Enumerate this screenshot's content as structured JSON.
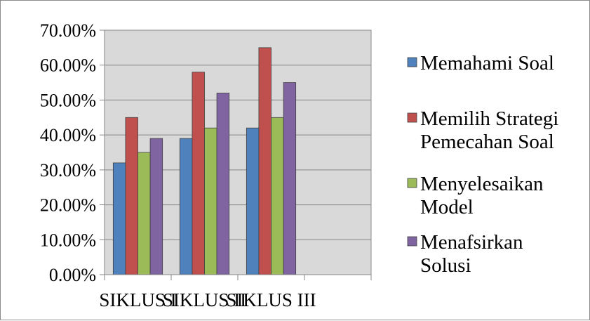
{
  "chart_data": {
    "type": "bar",
    "categories": [
      "SIKLUS I",
      "SIKLUS II",
      "SIKLUS III",
      ""
    ],
    "series": [
      {
        "name": "Memahami Soal",
        "values": [
          0.32,
          0.39,
          0.42,
          null
        ],
        "color": "#4f81bd",
        "label_lines": [
          "Memahami Soal"
        ]
      },
      {
        "name": "Memilih Strategi Pemecahan Soal",
        "values": [
          0.45,
          0.58,
          0.65,
          null
        ],
        "color": "#c0504d",
        "label_lines": [
          "Memilih Strategi",
          "Pemecahan Soal"
        ]
      },
      {
        "name": "Menyelesaikan Model",
        "values": [
          0.35,
          0.42,
          0.45,
          null
        ],
        "color": "#9bbb59",
        "label_lines": [
          "Menyelesaikan",
          "Model"
        ]
      },
      {
        "name": "Menafsirkan Solusi",
        "values": [
          0.39,
          0.52,
          0.55,
          null
        ],
        "color": "#8064a2",
        "label_lines": [
          "Menafsirkan",
          "Solusi"
        ]
      }
    ],
    "y_ticks": [
      "0.00%",
      "10.00%",
      "20.00%",
      "30.00%",
      "40.00%",
      "50.00%",
      "60.00%",
      "70.00%"
    ],
    "ylim": [
      0,
      0.7
    ],
    "grid": true,
    "plot_background": "#d9d9d9",
    "legend_position": "right",
    "title": "",
    "xlabel": "",
    "ylabel": ""
  }
}
